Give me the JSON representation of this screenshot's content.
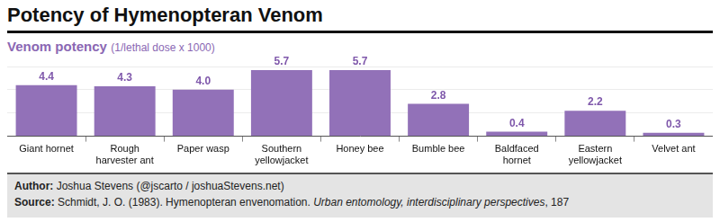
{
  "chart_data": {
    "type": "bar",
    "title": "Potency of Hymenopteran Venom",
    "ylabel": "Venom potency",
    "ylabel_units": "(1/lethal dose x 1000)",
    "categories": [
      "Giant hornet",
      "Rough harvester ant",
      "Paper wasp",
      "Southern yellowjacket",
      "Honey bee",
      "Bumble bee",
      "Baldfaced hornet",
      "Eastern yellowjacket",
      "Velvet ant"
    ],
    "values": [
      4.4,
      4.3,
      4.0,
      5.7,
      5.7,
      2.8,
      0.4,
      2.2,
      0.3
    ],
    "value_labels": [
      "4.4",
      "4.3",
      "4.0",
      "5.7",
      "5.7",
      "2.8",
      "0.4",
      "2.2",
      "0.3"
    ],
    "color": "#9271b8",
    "ylim": [
      0,
      6
    ],
    "yticks": [
      0,
      2,
      4,
      6
    ],
    "grid": true,
    "tick_labels": "x",
    "data_labels": true,
    "annotations": [
      {
        "label": "Author:",
        "text": "Joshua Stevens (@jscarto / joshuaStevens.net)"
      },
      {
        "label": "Source:",
        "text": "Schmidt, J. O. (1983). Hymenopteran envenomation. ",
        "italic": "Urban entomology, interdisciplinary perspectives",
        "tail": ", 187"
      }
    ]
  }
}
